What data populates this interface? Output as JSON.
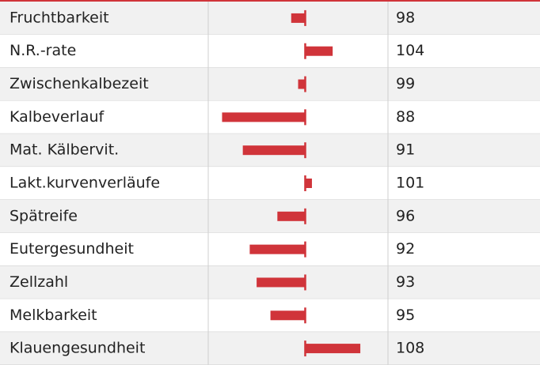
{
  "chart_data": {
    "type": "bar",
    "orientation": "horizontal",
    "categories": [
      "Fruchtbarkeit",
      "N.R.-rate",
      "Zwischenkalbezeit",
      "Kalbeverlauf",
      "Mat. Kälbervit.",
      "Lakt.kurvenverläufe",
      "Spätreife",
      "Eutergesundheit",
      "Zellzahl",
      "Melkbarkeit",
      "Klauengesundheit"
    ],
    "values": [
      98,
      104,
      99,
      88,
      91,
      101,
      96,
      92,
      93,
      95,
      108
    ],
    "color": "#d0343a",
    "baseline": 100,
    "xlim": [
      86,
      112
    ]
  }
}
